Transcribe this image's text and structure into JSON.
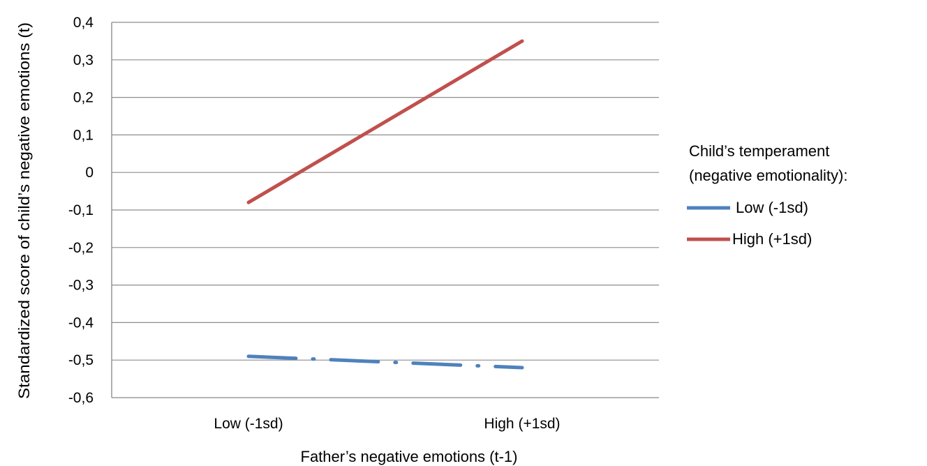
{
  "chart_data": {
    "type": "line",
    "categories": [
      "Low (-1sd)",
      "High (+1sd)"
    ],
    "xlabel": "Father’s negative emotions (t-1)",
    "ylabel": "Standardized score of child’s negative emotions (t)",
    "ylim": [
      -0.6,
      0.4
    ],
    "yticks": [
      {
        "value": 0.4,
        "label": "0,4"
      },
      {
        "value": 0.3,
        "label": "0,3"
      },
      {
        "value": 0.2,
        "label": "0,2"
      },
      {
        "value": 0.1,
        "label": "0,1"
      },
      {
        "value": 0,
        "label": "0"
      },
      {
        "value": -0.1,
        "label": "-0,1"
      },
      {
        "value": -0.2,
        "label": "-0,2"
      },
      {
        "value": -0.3,
        "label": "-0,3"
      },
      {
        "value": -0.4,
        "label": "-0,4"
      },
      {
        "value": -0.5,
        "label": "-0,5"
      },
      {
        "value": -0.6,
        "label": "-0,6"
      }
    ],
    "grid": true,
    "legend": {
      "title_line1": "Child’s temperament",
      "title_line2": "(negative emotionality):",
      "placement": "right"
    },
    "series": [
      {
        "name": "Low (-1sd)",
        "values": [
          -0.49,
          -0.52
        ],
        "color": "#4F81BD",
        "dash": "dash-dot"
      },
      {
        "name": "High (+1sd)",
        "values": [
          -0.08,
          0.35
        ],
        "color": "#C0504D",
        "dash": "solid"
      }
    ]
  }
}
